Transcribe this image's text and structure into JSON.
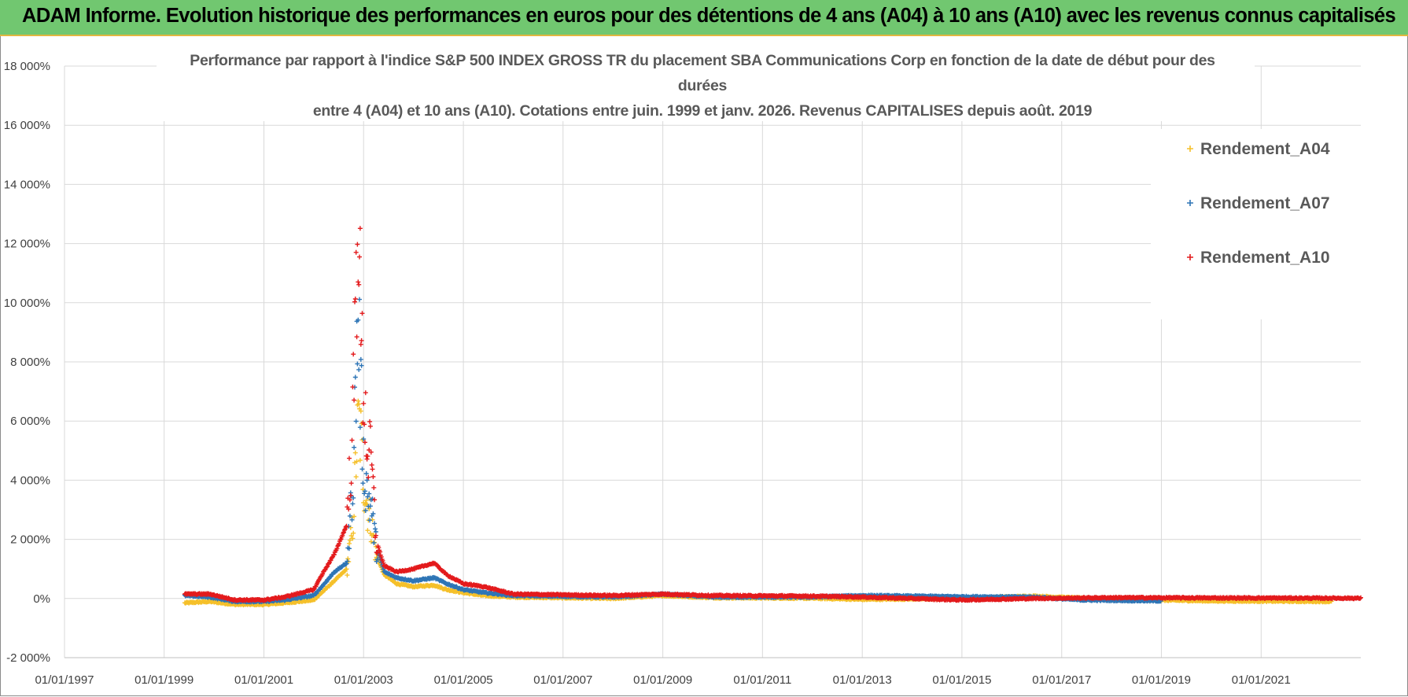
{
  "banner": {
    "title": "ADAM Informe. Evolution historique des performances en euros pour des détentions de 4 ans (A04) à 10 ans (A10) avec les revenus connus capitalisés"
  },
  "chart_data": {
    "type": "scatter",
    "title_lines": [
      "Performance par rapport à l'indice S&P 500 INDEX GROSS TR  du placement SBA Communications Corp en fonction de la date de début pour des",
      "durées",
      "entre 4 (A04) et 10 ans (A10).  Cotations entre juin. 1999 et janv. 2026. Revenus CAPITALISES depuis août. 2019"
    ],
    "xlabel": "",
    "ylabel": "",
    "x_range": [
      "1997-01-01",
      "2023-01-01"
    ],
    "y_range": [
      -2000,
      18000
    ],
    "x_ticks": [
      "01/01/1997",
      "01/01/1999",
      "01/01/2001",
      "01/01/2003",
      "01/01/2005",
      "01/01/2007",
      "01/01/2009",
      "01/01/2011",
      "01/01/2013",
      "01/01/2015",
      "01/01/2017",
      "01/01/2019",
      "01/01/2021"
    ],
    "y_ticks": [
      "-2 000%",
      "0%",
      "2 000%",
      "4 000%",
      "6 000%",
      "8 000%",
      "10 000%",
      "12 000%",
      "14 000%",
      "16 000%",
      "18 000%"
    ],
    "y_tick_values": [
      -2000,
      0,
      2000,
      4000,
      6000,
      8000,
      10000,
      12000,
      14000,
      16000,
      18000
    ],
    "grid": true,
    "legend_position": "top-right",
    "series": [
      {
        "name": "Rendement_A04",
        "color": "#f5c02a",
        "x_end": "2022-06-01",
        "keypoints": [
          [
            "1999-06-01",
            -150
          ],
          [
            "1999-12-01",
            -100
          ],
          [
            "2000-06-01",
            -200
          ],
          [
            "2001-01-01",
            -200
          ],
          [
            "2001-06-01",
            -150
          ],
          [
            "2002-01-01",
            -50
          ],
          [
            "2002-03-01",
            200
          ],
          [
            "2002-06-01",
            600
          ],
          [
            "2002-09-01",
            1000
          ],
          [
            "2002-10-15",
            2500
          ],
          [
            "2002-11-10",
            5000
          ],
          [
            "2002-11-25",
            6000
          ],
          [
            "2002-12-10",
            5500
          ],
          [
            "2003-01-01",
            4000
          ],
          [
            "2003-02-01",
            3000
          ],
          [
            "2003-03-01",
            2500
          ],
          [
            "2003-04-01",
            1500
          ],
          [
            "2003-06-01",
            800
          ],
          [
            "2003-09-01",
            500
          ],
          [
            "2004-01-01",
            400
          ],
          [
            "2004-06-01",
            450
          ],
          [
            "2004-09-01",
            300
          ],
          [
            "2005-01-01",
            200
          ],
          [
            "2005-06-01",
            100
          ],
          [
            "2006-01-01",
            50
          ],
          [
            "2008-01-01",
            0
          ],
          [
            "2009-01-01",
            100
          ],
          [
            "2010-01-01",
            30
          ],
          [
            "2012-01-01",
            10
          ],
          [
            "2013-01-01",
            -30
          ],
          [
            "2015-01-01",
            0
          ],
          [
            "2016-06-01",
            80
          ],
          [
            "2018-01-01",
            -30
          ],
          [
            "2020-01-01",
            -80
          ],
          [
            "2022-06-01",
            -100
          ]
        ]
      },
      {
        "name": "Rendement_A07",
        "color": "#2e75b6",
        "x_end": "2019-01-01",
        "keypoints": [
          [
            "1999-06-01",
            100
          ],
          [
            "1999-12-01",
            50
          ],
          [
            "2000-06-01",
            -100
          ],
          [
            "2001-01-01",
            -100
          ],
          [
            "2001-06-01",
            -50
          ],
          [
            "2002-01-01",
            100
          ],
          [
            "2002-03-01",
            400
          ],
          [
            "2002-06-01",
            900
          ],
          [
            "2002-09-01",
            1200
          ],
          [
            "2002-10-15",
            4000
          ],
          [
            "2002-11-10",
            8000
          ],
          [
            "2002-11-25",
            9500
          ],
          [
            "2002-12-10",
            7000
          ],
          [
            "2003-01-01",
            4500
          ],
          [
            "2003-02-01",
            3500
          ],
          [
            "2003-03-01",
            3000
          ],
          [
            "2003-04-01",
            1800
          ],
          [
            "2003-06-01",
            900
          ],
          [
            "2003-09-01",
            700
          ],
          [
            "2004-01-01",
            600
          ],
          [
            "2004-06-01",
            700
          ],
          [
            "2004-09-01",
            500
          ],
          [
            "2005-01-01",
            300
          ],
          [
            "2005-06-01",
            200
          ],
          [
            "2006-01-01",
            100
          ],
          [
            "2008-01-01",
            50
          ],
          [
            "2009-01-01",
            150
          ],
          [
            "2010-01-01",
            50
          ],
          [
            "2012-01-01",
            50
          ],
          [
            "2013-01-01",
            100
          ],
          [
            "2015-01-01",
            60
          ],
          [
            "2016-06-01",
            50
          ],
          [
            "2017-06-01",
            -50
          ],
          [
            "2019-01-01",
            -80
          ]
        ]
      },
      {
        "name": "Rendement_A10",
        "color": "#e31a1c",
        "x_end": "2023-01-01",
        "keypoints": [
          [
            "1999-06-01",
            150
          ],
          [
            "1999-12-01",
            150
          ],
          [
            "2000-06-01",
            -50
          ],
          [
            "2001-01-01",
            -50
          ],
          [
            "2001-06-01",
            50
          ],
          [
            "2002-01-01",
            300
          ],
          [
            "2002-03-01",
            800
          ],
          [
            "2002-06-01",
            1500
          ],
          [
            "2002-09-01",
            2500
          ],
          [
            "2002-10-15",
            6000
          ],
          [
            "2002-11-10",
            11000
          ],
          [
            "2002-11-25",
            14000
          ],
          [
            "2002-12-10",
            9000
          ],
          [
            "2003-01-01",
            7000
          ],
          [
            "2003-02-01",
            5000
          ],
          [
            "2003-03-01",
            4500
          ],
          [
            "2003-04-01",
            2000
          ],
          [
            "2003-06-01",
            1100
          ],
          [
            "2003-09-01",
            900
          ],
          [
            "2004-01-01",
            1000
          ],
          [
            "2004-06-01",
            1200
          ],
          [
            "2004-09-01",
            800
          ],
          [
            "2005-01-01",
            500
          ],
          [
            "2005-06-01",
            400
          ],
          [
            "2006-01-01",
            150
          ],
          [
            "2008-01-01",
            100
          ],
          [
            "2009-01-01",
            150
          ],
          [
            "2010-01-01",
            100
          ],
          [
            "2012-01-01",
            80
          ],
          [
            "2013-01-01",
            50
          ],
          [
            "2015-01-01",
            -50
          ],
          [
            "2016-06-01",
            0
          ],
          [
            "2018-01-01",
            30
          ],
          [
            "2020-01-01",
            20
          ],
          [
            "2023-01-01",
            10
          ]
        ]
      }
    ]
  }
}
